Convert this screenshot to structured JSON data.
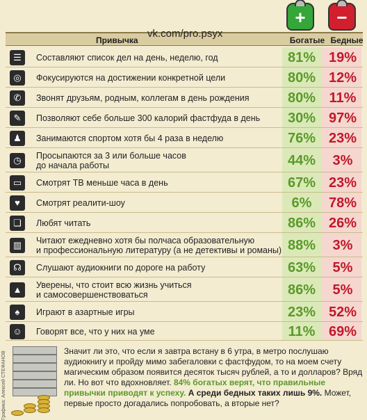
{
  "source_url": "vk.com/pro.psyx",
  "header": {
    "habit": "Привычка",
    "rich": "Богатые",
    "poor": "Бедные"
  },
  "wallets": {
    "rich_sign": "+",
    "poor_sign": "−",
    "rich_color": "#35a639",
    "poor_color": "#d11f2e"
  },
  "rows": [
    {
      "icon": "list-icon",
      "glyph": "☰",
      "text": "Составляют список дел на день, неделю, год",
      "rich": "81%",
      "poor": "19%"
    },
    {
      "icon": "target-icon",
      "glyph": "◎",
      "text": "Фокусируются на достижении конкретной цели",
      "rich": "80%",
      "poor": "12%"
    },
    {
      "icon": "phone-icon",
      "glyph": "✆",
      "text": "Звонят друзьям, родным, коллегам в день рождения",
      "rich": "80%",
      "poor": "11%"
    },
    {
      "icon": "fork-icon",
      "glyph": "✎",
      "text": "Позволяют себе больше 300 калорий фастфуда в день",
      "rich": "30%",
      "poor": "97%"
    },
    {
      "icon": "runner-icon",
      "glyph": "♟",
      "text": "Занимаются спортом хотя бы 4 раза в неделю",
      "rich": "76%",
      "poor": "23%"
    },
    {
      "icon": "alarm-clock-icon",
      "glyph": "◷",
      "text": "Просыпаются за 3 или больше часов до начала работы",
      "text2": "до начала работы",
      "text1": "Просыпаются за 3 или больше часов",
      "rich": "44%",
      "poor": "3%"
    },
    {
      "icon": "tv-icon",
      "glyph": "▭",
      "text": "Смотрят ТВ меньше часа в день",
      "rich": "67%",
      "poor": "23%"
    },
    {
      "icon": "tv-heart-icon",
      "glyph": "♥",
      "text": "Смотрят реалити-шоу",
      "rich": "6%",
      "poor": "78%"
    },
    {
      "icon": "book-icon",
      "glyph": "❏",
      "text": "Любят читать",
      "rich": "86%",
      "poor": "26%"
    },
    {
      "icon": "books-icon",
      "glyph": "▥",
      "text1": "Читают ежедневно хотя бы полчаса образовательную",
      "text2": "и профессиональную литературу (а не детективы и романы)",
      "rich": "88%",
      "poor": "3%"
    },
    {
      "icon": "headphones-icon",
      "glyph": "☊",
      "text": "Слушают аудиокниги по дороге на работу",
      "rich": "63%",
      "poor": "5%"
    },
    {
      "icon": "graduation-cap-icon",
      "glyph": "▲",
      "text1": "Уверены, что стоит всю жизнь учиться",
      "text2": "и самосовершенствоваться",
      "rich": "86%",
      "poor": "5%"
    },
    {
      "icon": "spade-icon",
      "glyph": "♠",
      "text": "Играют в азартные игры",
      "rich": "23%",
      "poor": "52%"
    },
    {
      "icon": "speech-bubble-icon",
      "glyph": "☺",
      "text": "Говорят все, что у них на уме",
      "rich": "11%",
      "poor": "69%"
    }
  ],
  "bottom": {
    "p1": "Значит ли это, что если я завтра встану в 6 утра, в метро послушаю аудиокнигу и пройду мимо забегаловки с фастфудом, то на моем счету магическим образом появится десяток тысяч рублей, а то и долларов? Вряд ли. Но вот что вдохновляет.",
    "hl1": "84% богатых верят, что правильные привычки приводят к успеху.",
    "p2": "А среди бедных таких лишь 9%.",
    "p3": "Может, первые просто догадались попробовать, а вторые нет?"
  },
  "credit": "Графика: Алексей СТЕФАНОВ"
}
